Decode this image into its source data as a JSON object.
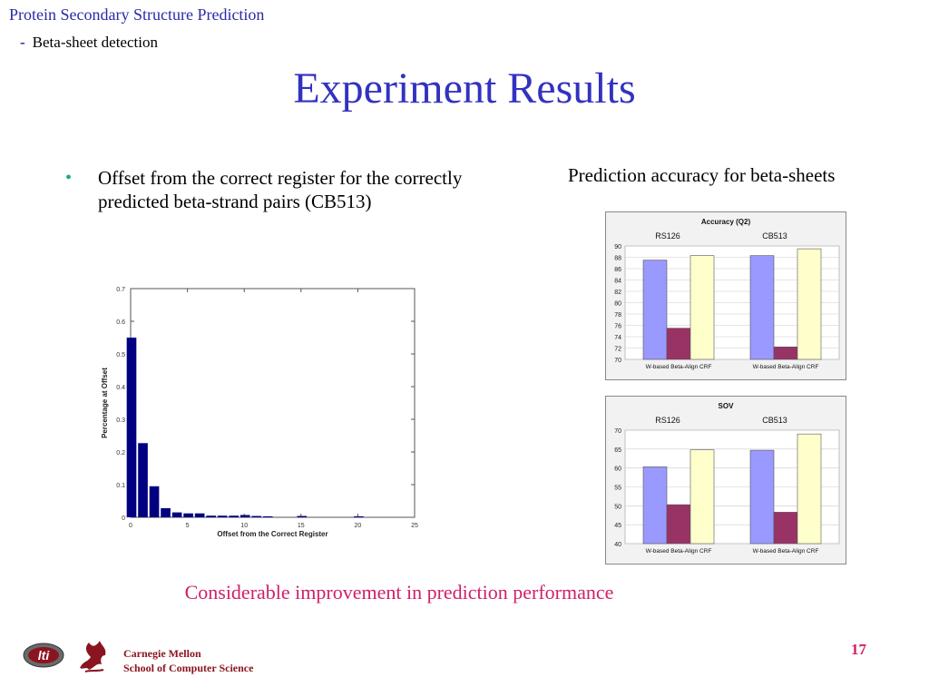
{
  "header": {
    "course": "Protein Secondary Structure Prediction",
    "dash": "-",
    "subtopic": "Beta-sheet detection"
  },
  "title": "Experiment Results",
  "bullet": {
    "symbol": "•",
    "text": "Offset from the correct register for the correctly predicted beta-strand pairs (CB513)"
  },
  "right_caption": "Prediction accuracy for beta-sheets",
  "conclusion": "Considerable improvement in prediction performance",
  "footer": {
    "org_line1": "Carnegie Mellon",
    "org_line2": "School of Computer Science",
    "logo_text": "lti",
    "page_number": "17"
  },
  "colors": {
    "w_based": "#9999ff",
    "beta_align": "#993366",
    "crf": "#ffffcc",
    "histogram": "#000080"
  },
  "chart_data": [
    {
      "type": "bar",
      "xlabel": "Offset from the Correct Register",
      "ylabel": "Percentage at Offset",
      "xlim": [
        0,
        25
      ],
      "ylim": [
        0,
        0.7
      ],
      "xticks": [
        0,
        5,
        10,
        15,
        20,
        25
      ],
      "yticks": [
        0,
        0.1,
        0.2,
        0.3,
        0.4,
        0.5,
        0.6,
        0.7
      ],
      "x": [
        0,
        1,
        2,
        3,
        4,
        5,
        6,
        7,
        8,
        9,
        10,
        11,
        12,
        15,
        20
      ],
      "values": [
        0.55,
        0.227,
        0.095,
        0.028,
        0.015,
        0.012,
        0.012,
        0.005,
        0.005,
        0.005,
        0.007,
        0.004,
        0.003,
        0.004,
        0.003
      ]
    },
    {
      "type": "bar",
      "title": "Accuracy (Q2)",
      "ylim": [
        70,
        90
      ],
      "yticks": [
        70,
        72,
        74,
        76,
        78,
        80,
        82,
        84,
        86,
        88,
        90
      ],
      "groups": [
        {
          "label": "RS126",
          "categories": [
            "W-based",
            "Beta-Align",
            "CRF"
          ],
          "values": [
            87.5,
            75.5,
            88.3
          ]
        },
        {
          "label": "CB513",
          "categories": [
            "W-based",
            "Beta-Align",
            "CRF"
          ],
          "values": [
            88.3,
            72.2,
            89.5
          ]
        }
      ]
    },
    {
      "type": "bar",
      "title": "SOV",
      "ylim": [
        40,
        70
      ],
      "yticks": [
        40,
        45,
        50,
        55,
        60,
        65,
        70
      ],
      "groups": [
        {
          "label": "RS126",
          "categories": [
            "W-based",
            "Beta-Align",
            "CRF"
          ],
          "values": [
            60.3,
            50.3,
            64.8
          ]
        },
        {
          "label": "CB513",
          "categories": [
            "W-based",
            "Beta-Align",
            "CRF"
          ],
          "values": [
            64.7,
            48.3,
            69.0
          ]
        }
      ]
    }
  ]
}
